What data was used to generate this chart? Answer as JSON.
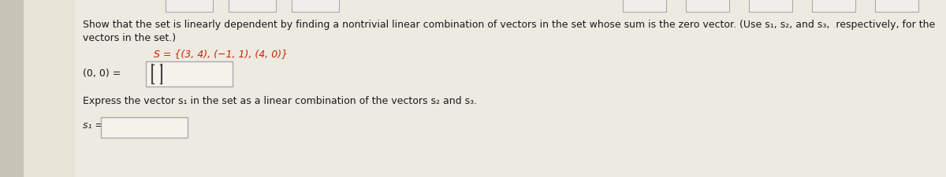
{
  "background_color": "#edeae2",
  "left_stripe_color": "#e8e5d8",
  "outer_bg": "#c8c4b8",
  "text_color": "#1a1a1a",
  "instruction_line1": "Show that the set is linearly dependent by finding a nontrivial linear combination of vectors in the set whose sum is the zero vector. (Use s₁, s₂, and s₃,  respectively, for the",
  "instruction_line2": "vectors in the set.)",
  "set_line": "S = {(3, 4), (−1, 1), (4, 0)}",
  "zero_label": "(0, 0) =",
  "express_text": "Express the vector s₁ in the set as a linear combination of the vectors s₂ and s₃.",
  "s1_label": "s₁ =",
  "input_box_color": "#f5f2ec",
  "input_box_edge": "#aaaaaa",
  "set_color": "#cc2200",
  "font_size_main": 9.0,
  "font_size_set": 9.0,
  "font_size_labels": 9.0
}
